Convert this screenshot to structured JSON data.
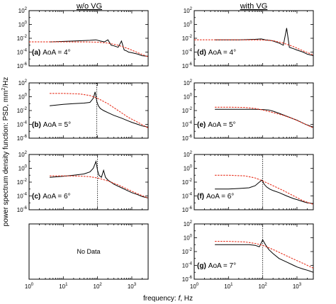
{
  "figure": {
    "ylabel": "power spectrum density function: PSD, mm",
    "ylabel_sup": "2",
    "ylabel_tail": "/Hz",
    "xlabel_prefix": "frequency: ",
    "xlabel_var": "f",
    "xlabel_suffix": ", Hz",
    "column_titles": [
      "w/o VG",
      "with VG"
    ],
    "no_data_text": "No Data"
  },
  "colors": {
    "measured": "#000000",
    "model": "#e8321f",
    "marker": "#000000",
    "axes": "#000000"
  },
  "chart_data": [
    {
      "type": "line",
      "id": "a",
      "column": 0,
      "row": 0,
      "tag": "(a)",
      "label": "AoA = 4°",
      "xscale": "log",
      "yscale": "log",
      "xlim": [
        1,
        3000
      ],
      "ylim": [
        1e-06,
        100
      ],
      "xticks": [
        "10^0",
        "10^1",
        "10^2",
        "10^3"
      ],
      "yticks": [
        "10^-6",
        "10^-4",
        "10^-2",
        "10^0",
        "10^2"
      ],
      "peak_marker_x": null,
      "series": [
        {
          "kind": "measured",
          "x": [
            4,
            20,
            60,
            90,
            120,
            160,
            200,
            250,
            300,
            400,
            500,
            600,
            700,
            800,
            1000,
            1500,
            2000,
            3000
          ],
          "y": [
            0.003,
            0.004,
            0.005,
            0.006,
            0.004,
            0.003,
            0.006,
            0.001,
            0.0008,
            0.0005,
            0.004,
            0.0002,
            0.00015,
            0.0001,
            8e-05,
            5e-05,
            3e-05,
            2.5e-05
          ]
        },
        {
          "kind": "model",
          "x": [
            1,
            10,
            50,
            100,
            200,
            400,
            800,
            1500,
            3000
          ],
          "y": [
            0.003,
            0.003,
            0.0029,
            0.0027,
            0.002,
            0.001,
            0.0003,
            8e-05,
            2e-05
          ]
        }
      ]
    },
    {
      "type": "line",
      "id": "b",
      "column": 0,
      "row": 1,
      "tag": "(b)",
      "label": "AoA = 5°",
      "xscale": "log",
      "yscale": "log",
      "xlim": [
        1,
        3000
      ],
      "ylim": [
        1e-06,
        100
      ],
      "xticks": [
        "10^0",
        "10^1",
        "10^2",
        "10^3"
      ],
      "yticks": [
        "10^-6",
        "10^-4",
        "10^-2",
        "10^0",
        "10^2"
      ],
      "peak_marker_x": 95,
      "series": [
        {
          "kind": "measured",
          "x": [
            4,
            10,
            20,
            40,
            60,
            75,
            85,
            95,
            105,
            120,
            150,
            200,
            300,
            500,
            800,
            1000,
            1500,
            2000,
            3000
          ],
          "y": [
            0.05,
            0.08,
            0.1,
            0.12,
            0.15,
            0.6,
            5,
            0.2,
            0.05,
            0.02,
            0.01,
            0.005,
            0.002,
            0.0008,
            0.0003,
            0.0002,
            0.0001,
            6e-05,
            4e-05
          ]
        },
        {
          "kind": "model",
          "x": [
            4,
            10,
            30,
            60,
            100,
            200,
            400,
            800,
            1500,
            3000
          ],
          "y": [
            3,
            3,
            2.5,
            1.5,
            0.6,
            0.1,
            0.01,
            0.001,
            0.0002,
            3e-05
          ]
        }
      ]
    },
    {
      "type": "line",
      "id": "c",
      "column": 0,
      "row": 2,
      "tag": "(c)",
      "label": "AoA = 6°",
      "xscale": "log",
      "yscale": "log",
      "xlim": [
        1,
        3000
      ],
      "ylim": [
        1e-06,
        100
      ],
      "xticks": [
        "10^0",
        "10^1",
        "10^2",
        "10^3"
      ],
      "yticks": [
        "10^-6",
        "10^-4",
        "10^-2",
        "10^0",
        "10^2"
      ],
      "peak_marker_x": 100,
      "series": [
        {
          "kind": "measured",
          "x": [
            4,
            10,
            20,
            40,
            60,
            75,
            90,
            100,
            110,
            130,
            150,
            170,
            200,
            300,
            500,
            800,
            1000,
            1500,
            2000,
            3000
          ],
          "y": [
            0.05,
            0.07,
            0.1,
            0.15,
            0.3,
            1,
            10,
            0.5,
            0.1,
            0.05,
            0.5,
            0.05,
            0.02,
            0.005,
            0.0015,
            0.0005,
            0.0003,
            0.00015,
            8e-05,
            5e-05
          ]
        },
        {
          "kind": "model",
          "x": [
            4,
            10,
            30,
            60,
            100,
            200,
            400,
            800,
            1500,
            3000
          ],
          "y": [
            0.08,
            0.08,
            0.075,
            0.06,
            0.04,
            0.015,
            0.004,
            0.0008,
            0.0002,
            5e-05
          ]
        }
      ]
    },
    {
      "type": "line",
      "id": "d",
      "column": 1,
      "row": 0,
      "tag": "(d)",
      "label": "AoA = 4°",
      "xscale": "log",
      "yscale": "log",
      "xlim": [
        1,
        3000
      ],
      "ylim": [
        1e-06,
        100
      ],
      "xticks": [
        "10^0",
        "10^1",
        "10^2",
        "10^3"
      ],
      "yticks": [
        "10^-6",
        "10^-4",
        "10^-2",
        "10^0",
        "10^2"
      ],
      "peak_marker_x": null,
      "series": [
        {
          "kind": "measured",
          "x": [
            4,
            20,
            60,
            90,
            120,
            160,
            200,
            300,
            400,
            500,
            600,
            800,
            1000,
            1500,
            2000,
            3000
          ],
          "y": [
            0.006,
            0.006,
            0.007,
            0.008,
            0.006,
            0.005,
            0.004,
            0.002,
            0.001,
            0.3,
            0.0005,
            0.0003,
            0.0002,
            0.0001,
            5e-05,
            3e-05
          ]
        },
        {
          "kind": "model",
          "x": [
            1,
            10,
            50,
            100,
            200,
            400,
            800,
            1500,
            3000
          ],
          "y": [
            0.006,
            0.006,
            0.0058,
            0.0055,
            0.0045,
            0.002,
            0.0006,
            0.00015,
            4e-05
          ]
        }
      ]
    },
    {
      "type": "line",
      "id": "e",
      "column": 1,
      "row": 1,
      "tag": "(e)",
      "label": "AoA = 5°",
      "xscale": "log",
      "yscale": "log",
      "xlim": [
        1,
        3000
      ],
      "ylim": [
        1e-06,
        100
      ],
      "xticks": [
        "10^0",
        "10^1",
        "10^2",
        "10^3"
      ],
      "yticks": [
        "10^-6",
        "10^-4",
        "10^-2",
        "10^0",
        "10^2"
      ],
      "peak_marker_x": null,
      "series": [
        {
          "kind": "measured",
          "x": [
            4,
            10,
            30,
            60,
            100,
            150,
            200,
            300,
            500,
            800,
            1000,
            1500,
            2000,
            3000
          ],
          "y": [
            0.015,
            0.015,
            0.015,
            0.015,
            0.014,
            0.012,
            0.008,
            0.004,
            0.0015,
            0.0006,
            0.0004,
            0.00015,
            8e-05,
            4e-05
          ]
        },
        {
          "kind": "model",
          "x": [
            4,
            10,
            30,
            60,
            100,
            200,
            400,
            800,
            1500,
            3000
          ],
          "y": [
            0.03,
            0.03,
            0.028,
            0.02,
            0.012,
            0.005,
            0.002,
            0.0006,
            0.00015,
            3e-05
          ]
        }
      ]
    },
    {
      "type": "line",
      "id": "f",
      "column": 1,
      "row": 2,
      "tag": "(f)",
      "label": "AoA = 6°",
      "xscale": "log",
      "yscale": "log",
      "xlim": [
        1,
        3000
      ],
      "ylim": [
        1e-06,
        100
      ],
      "xticks": [
        "10^0",
        "10^1",
        "10^2",
        "10^3"
      ],
      "yticks": [
        "10^-6",
        "10^-4",
        "10^-2",
        "10^0",
        "10^2"
      ],
      "peak_marker_x": 100,
      "series": [
        {
          "kind": "measured",
          "x": [
            4,
            10,
            20,
            40,
            60,
            80,
            95,
            110,
            130,
            160,
            200,
            300,
            500,
            800,
            1000,
            1500,
            2000,
            3000
          ],
          "y": [
            0.001,
            0.001,
            0.0012,
            0.0015,
            0.003,
            0.01,
            0.02,
            0.005,
            0.002,
            0.001,
            0.0006,
            0.0003,
            0.0001,
            4e-05,
            3e-05,
            1.5e-05,
            1e-05,
            8e-06
          ]
        },
        {
          "kind": "model",
          "x": [
            4,
            10,
            30,
            60,
            100,
            200,
            400,
            800,
            1500,
            3000
          ],
          "y": [
            0.1,
            0.1,
            0.08,
            0.04,
            0.015,
            0.003,
            0.0006,
            0.0001,
            2e-05,
            6e-06
          ]
        }
      ]
    },
    {
      "type": "line",
      "id": "g",
      "column": 1,
      "row": 3,
      "tag": "(g)",
      "label": "AoA = 7°",
      "xscale": "log",
      "yscale": "log",
      "xlim": [
        1,
        3000
      ],
      "ylim": [
        1e-06,
        100
      ],
      "xticks": [
        "10^0",
        "10^1",
        "10^2",
        "10^3"
      ],
      "yticks": [
        "10^-6",
        "10^-4",
        "10^-2",
        "10^0",
        "10^2"
      ],
      "peak_marker_x": 100,
      "series": [
        {
          "kind": "measured",
          "x": [
            4,
            10,
            20,
            40,
            60,
            80,
            100,
            120,
            150,
            200,
            300,
            500,
            800,
            1000,
            1500,
            2000,
            3000
          ],
          "y": [
            0.1,
            0.1,
            0.1,
            0.1,
            0.08,
            0.05,
            0.5,
            0.1,
            0.02,
            0.005,
            0.001,
            0.0003,
            0.0001,
            6e-05,
            3e-05,
            2e-05,
            1e-05
          ]
        },
        {
          "kind": "model",
          "x": [
            4,
            10,
            30,
            60,
            100,
            200,
            400,
            800,
            1500,
            3000
          ],
          "y": [
            0.3,
            0.3,
            0.25,
            0.15,
            0.08,
            0.02,
            0.004,
            0.0008,
            0.0002,
            4e-05
          ]
        }
      ]
    }
  ]
}
